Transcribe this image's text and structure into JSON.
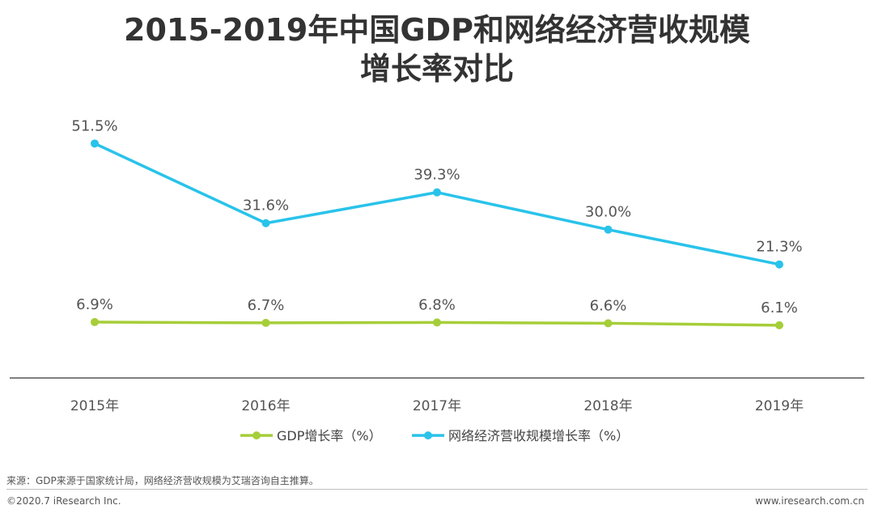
{
  "chart_data": {
    "type": "line",
    "title_line1": "2015-2019年中国GDP和网络经济营收规模",
    "title_line2": "增长率对比",
    "categories": [
      "2015年",
      "2016年",
      "2017年",
      "2018年",
      "2019年"
    ],
    "series": [
      {
        "name": "GDP增长率（%）",
        "color": "#a6ce39",
        "values": [
          6.9,
          6.7,
          6.8,
          6.6,
          6.1
        ],
        "labels": [
          "6.9%",
          "6.7%",
          "6.8%",
          "6.6%",
          "6.1%"
        ]
      },
      {
        "name": "网络经济营收规模增长率（%）",
        "color": "#29c3ea",
        "values": [
          51.5,
          31.6,
          39.3,
          30.0,
          21.3
        ],
        "labels": [
          "51.5%",
          "31.6%",
          "39.3%",
          "30.0%",
          "21.3%"
        ]
      }
    ],
    "ylim": [
      -1,
      55
    ],
    "grid": false,
    "legend_position": "bottom"
  },
  "notes": {
    "source": "来源：GDP来源于国家统计局，网络经济营收规模为艾瑞咨询自主推算。",
    "copyright": "©2020.7 iResearch Inc.",
    "website": "www.iresearch.com.cn"
  }
}
